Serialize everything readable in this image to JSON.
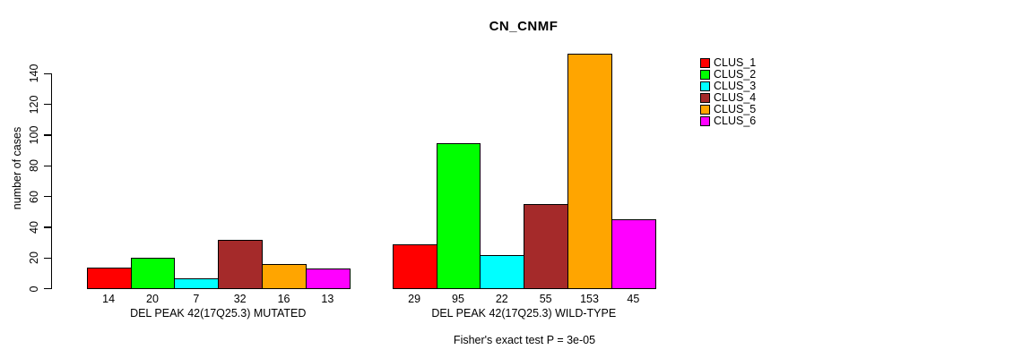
{
  "chart_data": {
    "type": "bar",
    "title": "CN_CNMF",
    "ylabel": "number of cases",
    "xlabel": "",
    "annotation": "Fisher's exact test P = 3e-05",
    "yticks": [
      0,
      20,
      40,
      60,
      80,
      100,
      120,
      140
    ],
    "ylim": [
      0,
      153
    ],
    "grid": false,
    "legend_position": "right",
    "series_labels": [
      "CLUS_1",
      "CLUS_2",
      "CLUS_3",
      "CLUS_4",
      "CLUS_5",
      "CLUS_6"
    ],
    "colors": [
      "#ff0000",
      "#00ff00",
      "#00ffff",
      "#a52a2a",
      "#ffa500",
      "#ff00ff"
    ],
    "groups": [
      {
        "label": "DEL PEAK 42(17Q25.3) MUTATED",
        "values": [
          14,
          20,
          7,
          32,
          16,
          13
        ]
      },
      {
        "label": "DEL PEAK 42(17Q25.3) WILD-TYPE",
        "values": [
          29,
          95,
          22,
          55,
          153,
          45
        ]
      }
    ]
  }
}
